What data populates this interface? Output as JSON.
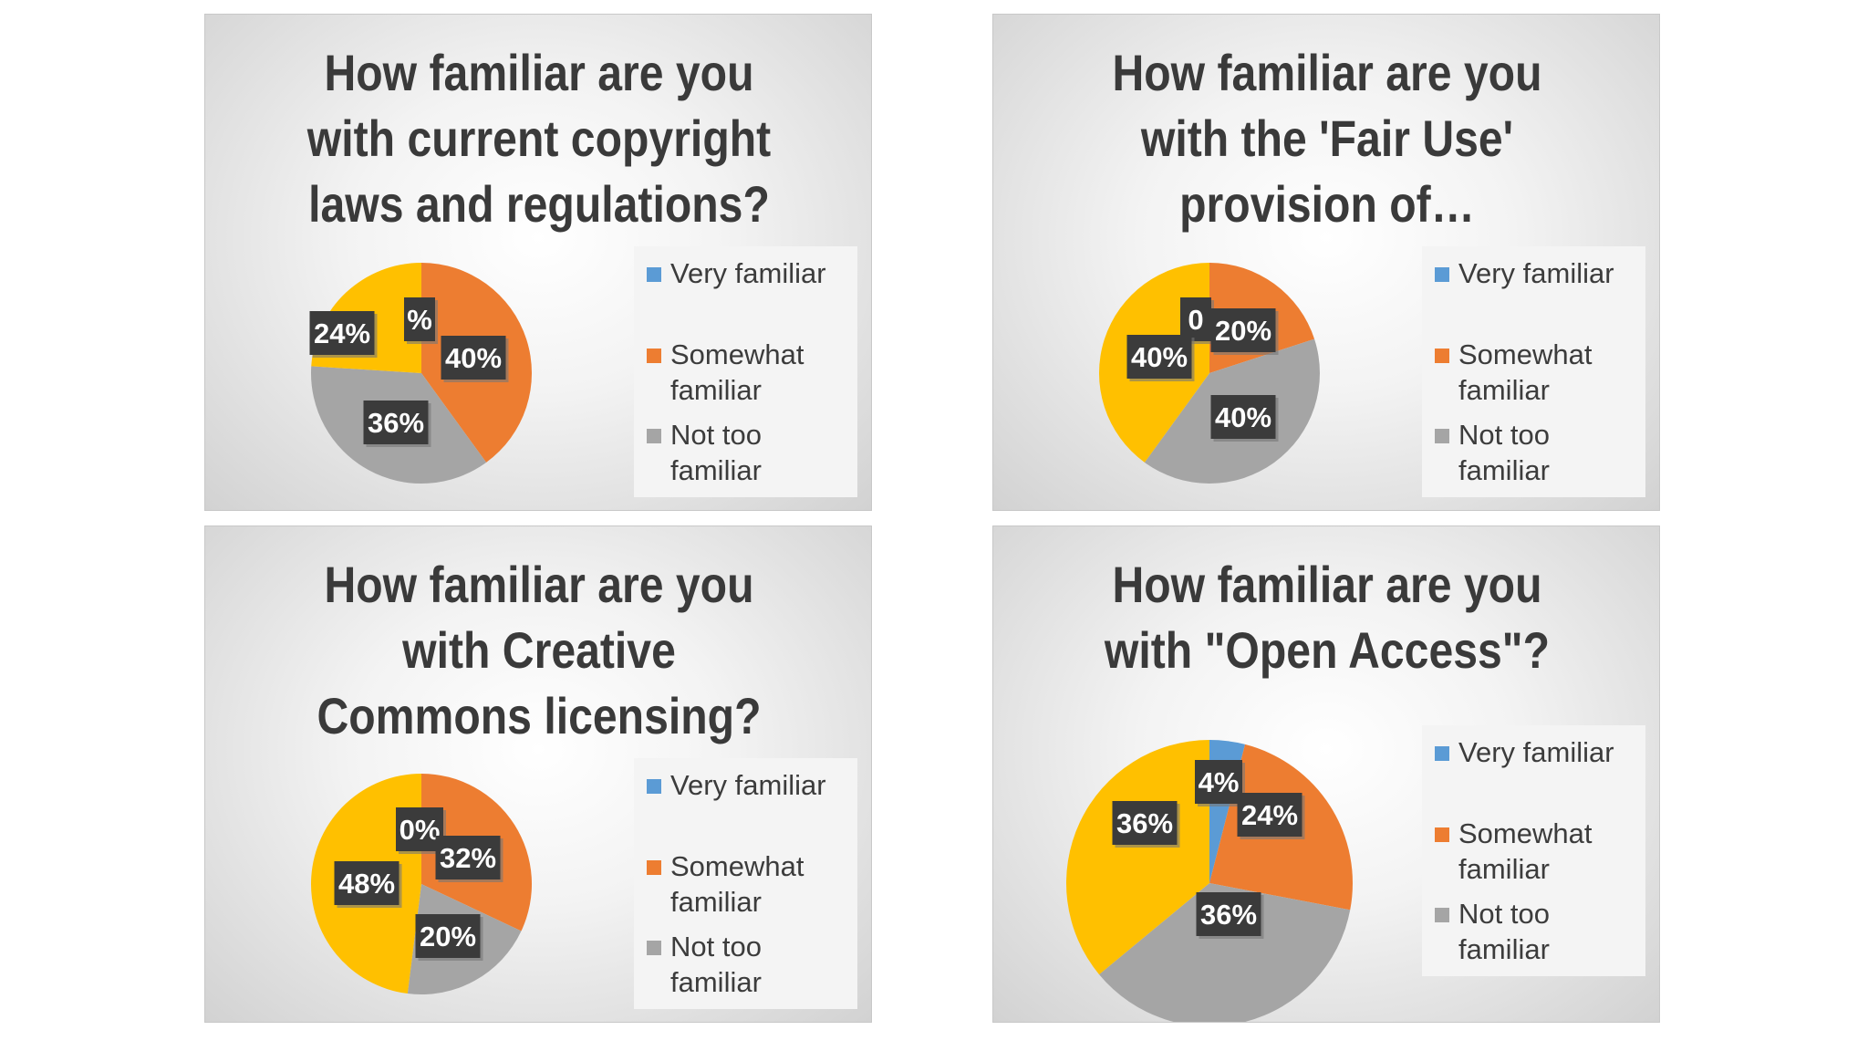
{
  "legend_labels": [
    "Very familiar",
    "Somewhat familiar",
    "Not too familiar"
  ],
  "colors": {
    "Very familiar": "#5b9bd5",
    "Somewhat familiar": "#ed7d31",
    "Not too familiar": "#a5a5a5",
    "other": "#ffc000"
  },
  "panels": [
    {
      "title_lines": [
        "How familiar are you",
        "with current copyright",
        "laws and regulations?"
      ]
    },
    {
      "title_lines": [
        "How familiar are you",
        "with the 'Fair Use'",
        "provision of…"
      ]
    },
    {
      "title_lines": [
        "How familiar are you",
        "with Creative",
        "Commons licensing?"
      ]
    },
    {
      "title_lines": [
        "How familiar are you",
        "with \"Open Access\"?"
      ]
    }
  ],
  "chart_data": [
    {
      "type": "pie",
      "title": "How familiar are you with current copyright laws and regulations?",
      "slices": [
        {
          "label": "Very familiar",
          "value": 0,
          "text": "%"
        },
        {
          "label": "Somewhat familiar",
          "value": 40,
          "text": "40%"
        },
        {
          "label": "Not too familiar",
          "value": 36,
          "text": "36%"
        },
        {
          "label": "",
          "value": 24,
          "text": "24%"
        }
      ]
    },
    {
      "type": "pie",
      "title": "How familiar are you with the 'Fair Use' provision of…",
      "slices": [
        {
          "label": "Very familiar",
          "value": 0,
          "text": "0"
        },
        {
          "label": "Somewhat familiar",
          "value": 20,
          "text": "20%"
        },
        {
          "label": "Not too familiar",
          "value": 40,
          "text": "40%"
        },
        {
          "label": "",
          "value": 40,
          "text": "40%"
        }
      ]
    },
    {
      "type": "pie",
      "title": "How familiar are you with Creative Commons licensing?",
      "slices": [
        {
          "label": "Very familiar",
          "value": 0,
          "text": "0%"
        },
        {
          "label": "Somewhat familiar",
          "value": 32,
          "text": "32%"
        },
        {
          "label": "Not too familiar",
          "value": 20,
          "text": "20%"
        },
        {
          "label": "",
          "value": 48,
          "text": "48%"
        }
      ]
    },
    {
      "type": "pie",
      "title": "How familiar are you with \"Open Access\"?",
      "slices": [
        {
          "label": "Very familiar",
          "value": 4,
          "text": "4%"
        },
        {
          "label": "Somewhat familiar",
          "value": 24,
          "text": "24%"
        },
        {
          "label": "Not too familiar",
          "value": 36,
          "text": "36%"
        },
        {
          "label": "",
          "value": 36,
          "text": "36%"
        }
      ]
    }
  ]
}
